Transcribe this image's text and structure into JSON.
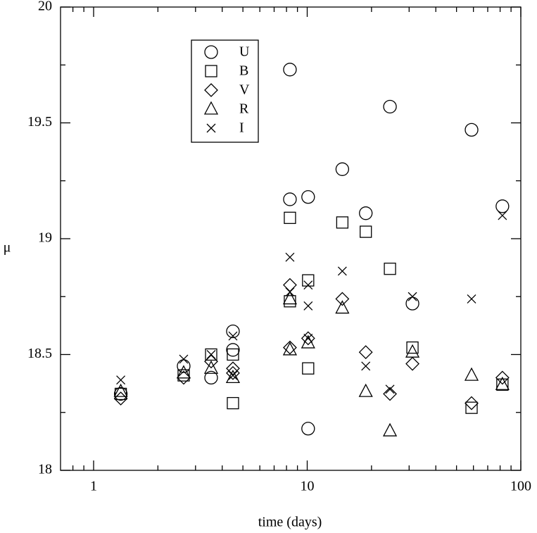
{
  "chart_data": {
    "type": "scatter",
    "xlabel": "time (days)",
    "ylabel": "μ",
    "xscale": "log",
    "xlim": [
      0.7,
      100
    ],
    "ylim": [
      18,
      20
    ],
    "xticks": [
      1,
      10,
      100
    ],
    "xminorticks": [
      0.8,
      0.9,
      2,
      3,
      4,
      5,
      6,
      7,
      8,
      9,
      20,
      30,
      40,
      50,
      60,
      70,
      80,
      90
    ],
    "yticks": [
      18,
      18.5,
      19,
      19.5,
      20
    ],
    "yminorticks": [
      18.25,
      18.75,
      19.25,
      19.75
    ],
    "legend": "upper-left",
    "series": [
      {
        "name": "U",
        "marker": "circle",
        "color": "#000000",
        "x": [
          1.34,
          2.64,
          3.55,
          4.49,
          4.49,
          8.3,
          8.3,
          10.1,
          10.1,
          14.6,
          18.8,
          24.4,
          31.1,
          58.8,
          82
        ],
        "values": [
          18.33,
          18.45,
          18.4,
          18.6,
          18.52,
          19.73,
          19.17,
          19.18,
          18.18,
          19.3,
          19.11,
          19.57,
          18.72,
          19.47,
          19.14
        ]
      },
      {
        "name": "B",
        "marker": "square",
        "color": "#000000",
        "x": [
          1.34,
          2.64,
          3.55,
          4.49,
          4.49,
          8.3,
          8.3,
          10.1,
          10.1,
          14.6,
          18.8,
          24.4,
          31.1,
          58.8,
          82
        ],
        "values": [
          18.33,
          18.41,
          18.5,
          18.5,
          18.29,
          19.09,
          18.73,
          18.82,
          18.44,
          19.07,
          19.03,
          18.87,
          18.53,
          18.27,
          18.37
        ]
      },
      {
        "name": "V",
        "marker": "diamond",
        "color": "#000000",
        "x": [
          1.34,
          2.64,
          3.55,
          4.49,
          4.49,
          8.3,
          8.3,
          10.1,
          14.6,
          18.8,
          24.4,
          31.1,
          58.8,
          82
        ],
        "values": [
          18.31,
          18.4,
          18.47,
          18.44,
          18.42,
          18.8,
          18.53,
          18.57,
          18.74,
          18.51,
          18.33,
          18.46,
          18.29,
          18.4
        ]
      },
      {
        "name": "R",
        "marker": "triangle",
        "color": "#000000",
        "x": [
          1.34,
          2.64,
          3.55,
          4.49,
          8.3,
          8.3,
          10.1,
          14.6,
          18.8,
          24.4,
          31.1,
          58.8,
          82
        ],
        "values": [
          18.34,
          18.42,
          18.44,
          18.4,
          18.74,
          18.52,
          18.55,
          18.7,
          18.34,
          18.17,
          18.51,
          18.41,
          18.37
        ]
      },
      {
        "name": "I",
        "marker": "x",
        "color": "#000000",
        "x": [
          1.34,
          2.64,
          3.55,
          4.49,
          4.49,
          8.3,
          8.3,
          10.1,
          10.1,
          10.1,
          14.6,
          18.8,
          24.4,
          31.1,
          58.8,
          82
        ],
        "values": [
          18.39,
          18.48,
          18.5,
          18.58,
          18.41,
          18.92,
          18.77,
          18.8,
          18.71,
          18.57,
          18.86,
          18.45,
          18.35,
          18.75,
          18.74,
          19.1
        ]
      }
    ]
  }
}
